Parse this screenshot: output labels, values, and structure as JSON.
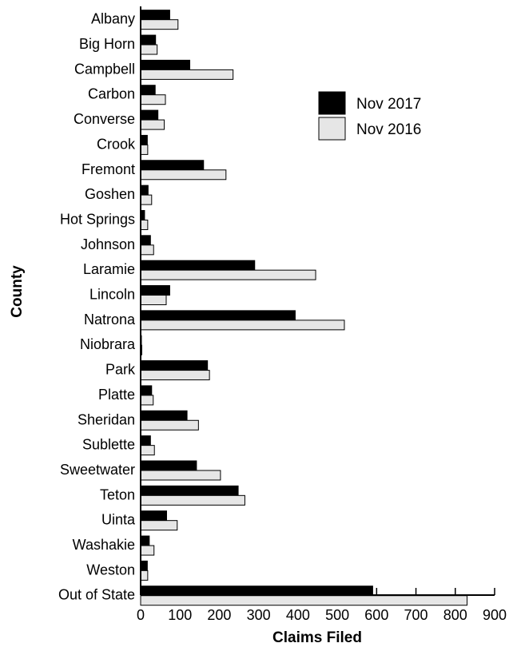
{
  "chart_data": {
    "type": "bar",
    "orientation": "horizontal",
    "title": "",
    "xlabel": "Claims Filed",
    "ylabel": "County",
    "xlim": [
      0,
      900
    ],
    "xticks": [
      "0",
      "100",
      "200",
      "300",
      "400",
      "500",
      "600",
      "700",
      "800",
      "900"
    ],
    "grid": false,
    "legend_position": "top-right",
    "categories": [
      "Albany",
      "Big Horn",
      "Campbell",
      "Carbon",
      "Converse",
      "Crook",
      "Fremont",
      "Goshen",
      "Hot Springs",
      "Johnson",
      "Laramie",
      "Lincoln",
      "Natrona",
      "Niobrara",
      "Park",
      "Platte",
      "Sheridan",
      "Sublette",
      "Sweetwater",
      "Teton",
      "Uinta",
      "Washakie",
      "Weston",
      "Out of State"
    ],
    "series": [
      {
        "name": "Nov 2017",
        "color": "#000000",
        "values": [
          74,
          38,
          125,
          37,
          44,
          17,
          160,
          19,
          10,
          25,
          290,
          74,
          393,
          2,
          170,
          28,
          118,
          25,
          142,
          248,
          66,
          22,
          17,
          590
        ]
      },
      {
        "name": "Nov 2016",
        "color": "#e6e6e6",
        "values": [
          95,
          42,
          235,
          63,
          60,
          18,
          217,
          28,
          18,
          33,
          445,
          65,
          518,
          3,
          175,
          32,
          147,
          35,
          203,
          265,
          93,
          34,
          18,
          830
        ]
      }
    ]
  }
}
